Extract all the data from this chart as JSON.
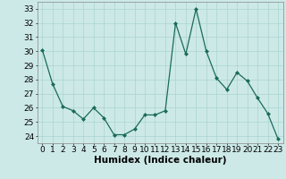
{
  "x": [
    0,
    1,
    2,
    3,
    4,
    5,
    6,
    7,
    8,
    9,
    10,
    11,
    12,
    13,
    14,
    15,
    16,
    17,
    18,
    19,
    20,
    21,
    22,
    23
  ],
  "y": [
    30.1,
    27.7,
    26.1,
    25.8,
    25.2,
    26.0,
    25.3,
    24.1,
    24.1,
    24.5,
    25.5,
    25.5,
    25.8,
    32.0,
    29.8,
    33.0,
    30.0,
    28.1,
    27.3,
    28.5,
    27.9,
    26.7,
    25.6,
    23.8
  ],
  "line_color": "#1a6b5a",
  "marker": "D",
  "markersize": 2.0,
  "linewidth": 0.9,
  "xlabel": "Humidex (Indice chaleur)",
  "ylabel_ticks": [
    24,
    25,
    26,
    27,
    28,
    29,
    30,
    31,
    32,
    33
  ],
  "ylim": [
    23.5,
    33.5
  ],
  "xlim": [
    -0.5,
    23.5
  ],
  "bg_color": "#cce9e7",
  "grid_color": "#aad4d0",
  "xlabel_fontsize": 7.5,
  "tick_fontsize": 6.5
}
